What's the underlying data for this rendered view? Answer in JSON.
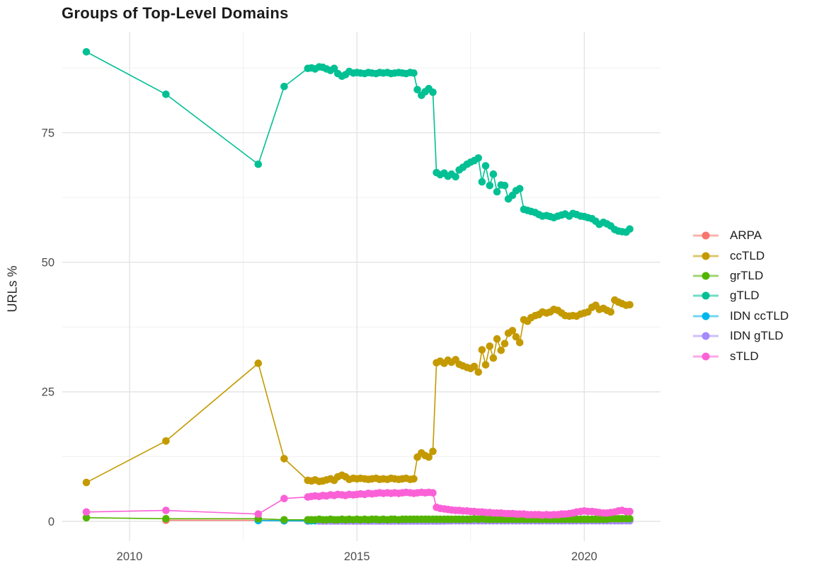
{
  "chart_data": {
    "type": "line",
    "title": "Groups of Top-Level Domains",
    "xlabel": "",
    "ylabel": "URLs %",
    "x_ticks": [
      2010,
      2015,
      2020
    ],
    "y_ticks": [
      0,
      25,
      50,
      75
    ],
    "x_minor_gridlines": [
      2012.5,
      2017.5
    ],
    "y_minor_gridlines": [
      12.5,
      37.5,
      62.5,
      87.5
    ],
    "xlim": [
      2008.5,
      2021.7
    ],
    "ylim": [
      -3.8,
      94.5
    ],
    "grid": "on",
    "legend_position": "right",
    "x": [
      2009.05,
      2010.8,
      2012.83,
      2013.4,
      2013.92,
      2014.0,
      2014.08,
      2014.17,
      2014.25,
      2014.33,
      2014.42,
      2014.5,
      2014.58,
      2014.67,
      2014.75,
      2014.83,
      2014.92,
      2015.0,
      2015.08,
      2015.17,
      2015.25,
      2015.33,
      2015.42,
      2015.5,
      2015.58,
      2015.67,
      2015.75,
      2015.83,
      2015.92,
      2016.0,
      2016.08,
      2016.17,
      2016.25,
      2016.33,
      2016.42,
      2016.5,
      2016.58,
      2016.67,
      2016.75,
      2016.83,
      2016.92,
      2017.0,
      2017.08,
      2017.17,
      2017.25,
      2017.33,
      2017.42,
      2017.5,
      2017.58,
      2017.67,
      2017.75,
      2017.83,
      2017.92,
      2018.0,
      2018.08,
      2018.17,
      2018.25,
      2018.33,
      2018.42,
      2018.5,
      2018.58,
      2018.67,
      2018.75,
      2018.83,
      2018.92,
      2019.0,
      2019.08,
      2019.17,
      2019.25,
      2019.33,
      2019.42,
      2019.5,
      2019.58,
      2019.67,
      2019.75,
      2019.83,
      2019.92,
      2020.0,
      2020.08,
      2020.17,
      2020.25,
      2020.33,
      2020.42,
      2020.5,
      2020.58,
      2020.67,
      2020.75,
      2020.83,
      2020.92,
      2021.0
    ],
    "series": [
      {
        "name": "ARPA",
        "color": "#F8766D",
        "x": [
          2010.8,
          2012.83,
          2013.4,
          2013.92
        ],
        "values": [
          0.2,
          0.2,
          0.1,
          0.05
        ]
      },
      {
        "name": "ccTLD",
        "color": "#C49A00",
        "values": [
          7.5,
          15.5,
          30.5,
          12.1,
          7.9,
          7.8,
          8.0,
          7.7,
          7.8,
          8.0,
          8.2,
          7.9,
          8.6,
          8.9,
          8.6,
          8.1,
          8.3,
          8.2,
          8.3,
          8.2,
          8.1,
          8.2,
          8.3,
          8.1,
          8.2,
          8.1,
          8.3,
          8.2,
          8.1,
          8.2,
          8.3,
          8.1,
          8.2,
          12.4,
          13.2,
          12.7,
          12.4,
          13.5,
          30.6,
          30.9,
          30.5,
          31.1,
          30.7,
          31.2,
          30.3,
          30.0,
          29.7,
          29.5,
          29.9,
          28.8,
          33.1,
          30.2,
          33.8,
          31.5,
          35.2,
          33.0,
          34.3,
          36.3,
          36.8,
          35.6,
          34.5,
          38.9,
          38.6,
          39.3,
          39.7,
          39.9,
          40.4,
          40.2,
          40.4,
          40.9,
          40.7,
          40.2,
          39.7,
          39.6,
          39.7,
          39.6,
          40.0,
          40.2,
          40.4,
          41.3,
          41.7,
          40.9,
          41.1,
          40.7,
          40.4,
          42.7,
          42.3,
          42.0,
          41.7,
          41.8
        ]
      },
      {
        "name": "grTLD",
        "color": "#53B400",
        "values": [
          0.7,
          0.5,
          0.5,
          0.3,
          0.3,
          0.3,
          0.3,
          0.4,
          0.3,
          0.3,
          0.4,
          0.3,
          0.3,
          0.4,
          0.3,
          0.4,
          0.3,
          0.4,
          0.3,
          0.4,
          0.3,
          0.4,
          0.4,
          0.3,
          0.4,
          0.3,
          0.4,
          0.4,
          0.3,
          0.4,
          0.4,
          0.4,
          0.4,
          0.4,
          0.4,
          0.4,
          0.4,
          0.4,
          0.4,
          0.4,
          0.4,
          0.4,
          0.4,
          0.4,
          0.4,
          0.4,
          0.4,
          0.4,
          0.5,
          0.4,
          0.5,
          0.4,
          0.4,
          0.4,
          0.4,
          0.4,
          0.4,
          0.4,
          0.4,
          0.4,
          0.4,
          0.4,
          0.4,
          0.4,
          0.4,
          0.4,
          0.4,
          0.4,
          0.4,
          0.4,
          0.4,
          0.4,
          0.4,
          0.4,
          0.4,
          0.4,
          0.4,
          0.4,
          0.4,
          0.4,
          0.4,
          0.4,
          0.4,
          0.4,
          0.5,
          0.5,
          0.5,
          0.5,
          0.5,
          0.5
        ]
      },
      {
        "name": "gTLD",
        "color": "#00C094",
        "values": [
          90.6,
          82.4,
          68.9,
          83.9,
          87.4,
          87.5,
          87.3,
          87.7,
          87.6,
          87.3,
          87.0,
          87.4,
          86.4,
          85.9,
          86.2,
          86.8,
          86.5,
          86.6,
          86.5,
          86.4,
          86.6,
          86.5,
          86.4,
          86.6,
          86.5,
          86.6,
          86.4,
          86.5,
          86.6,
          86.5,
          86.4,
          86.6,
          86.5,
          83.3,
          82.2,
          82.9,
          83.5,
          82.8,
          67.3,
          66.9,
          67.2,
          66.6,
          67.0,
          66.5,
          67.8,
          68.3,
          68.9,
          69.3,
          69.6,
          70.1,
          65.5,
          68.6,
          64.8,
          67.0,
          63.6,
          64.9,
          64.8,
          62.2,
          62.9,
          63.8,
          64.2,
          60.2,
          60.0,
          59.8,
          59.6,
          59.2,
          58.9,
          59.0,
          58.8,
          58.6,
          58.9,
          59.1,
          59.3,
          58.9,
          59.4,
          59.2,
          58.9,
          58.8,
          58.6,
          58.4,
          57.9,
          57.3,
          57.7,
          57.4,
          57.0,
          56.3,
          56.0,
          55.9,
          55.8,
          56.4
        ]
      },
      {
        "name": "IDN ccTLD",
        "color": "#00B6EB",
        "values": [
          null,
          null,
          0.15,
          0.1,
          0.1,
          0.1,
          0.1,
          0.1,
          0.1,
          0.1,
          0.1,
          0.1,
          0.1,
          0.1,
          0.1,
          0.1,
          0.1,
          0.1,
          0.1,
          0.1,
          0.1,
          0.1,
          0.1,
          0.1,
          0.1,
          0.1,
          0.1,
          0.1,
          0.1,
          0.1,
          0.1,
          0.1,
          0.1,
          0.1,
          0.1,
          0.1,
          0.1,
          0.1,
          0.15,
          0.15,
          0.15,
          0.15,
          0.15,
          0.15,
          0.15,
          0.15,
          0.15,
          0.15,
          0.15,
          0.15,
          0.15,
          0.15,
          0.15,
          0.15,
          0.15,
          0.15,
          0.15,
          0.15,
          0.15,
          0.15,
          0.15,
          0.15,
          0.15,
          0.15,
          0.15,
          0.15,
          0.15,
          0.15,
          0.15,
          0.15,
          0.15,
          0.15,
          0.15,
          0.15,
          0.15,
          0.15,
          0.15,
          0.2,
          0.2,
          0.2,
          0.2,
          0.2,
          0.2,
          0.2,
          0.2,
          0.2,
          0.2,
          0.2,
          0.2,
          0.2
        ]
      },
      {
        "name": "IDN gTLD",
        "color": "#A58AFF",
        "values": [
          null,
          null,
          null,
          null,
          null,
          null,
          null,
          0.05,
          0.05,
          0.05,
          0.05,
          0.05,
          0.05,
          0.05,
          0.05,
          0.05,
          0.05,
          0.05,
          0.05,
          0.05,
          0.05,
          0.05,
          0.05,
          0.05,
          0.05,
          0.05,
          0.05,
          0.05,
          0.05,
          0.05,
          0.05,
          0.05,
          0.05,
          0.05,
          0.05,
          0.05,
          0.05,
          0.05,
          0.05,
          0.05,
          0.05,
          0.1,
          0.1,
          0.1,
          0.1,
          0.1,
          0.1,
          0.1,
          0.1,
          0.1,
          0.1,
          0.1,
          0.1,
          0.1,
          0.1,
          0.1,
          0.1,
          0.1,
          0.1,
          0.1,
          0.1,
          0.1,
          0.1,
          0.1,
          0.1,
          0.1,
          0.1,
          0.1,
          0.1,
          0.1,
          0.1,
          0.1,
          0.1,
          0.1,
          0.1,
          0.1,
          0.1,
          0.1,
          0.1,
          0.1,
          0.1,
          0.1,
          0.1,
          0.1,
          0.1,
          0.1,
          0.1,
          0.1,
          0.1,
          0.1
        ]
      },
      {
        "name": "sTLD",
        "color": "#FB61D7",
        "values": [
          1.8,
          2.1,
          1.4,
          4.4,
          4.7,
          4.8,
          4.9,
          4.8,
          5.0,
          4.9,
          5.1,
          5.0,
          5.2,
          5.1,
          5.0,
          5.2,
          5.1,
          5.2,
          5.3,
          5.2,
          5.4,
          5.3,
          5.4,
          5.5,
          5.4,
          5.5,
          5.4,
          5.5,
          5.4,
          5.5,
          5.6,
          5.5,
          5.4,
          5.5,
          5.6,
          5.5,
          5.6,
          5.5,
          2.7,
          2.5,
          2.4,
          2.3,
          2.2,
          2.1,
          2.1,
          2.0,
          2.0,
          1.9,
          1.9,
          1.8,
          1.8,
          1.7,
          1.7,
          1.6,
          1.6,
          1.6,
          1.5,
          1.5,
          1.5,
          1.4,
          1.4,
          1.4,
          1.3,
          1.3,
          1.3,
          1.3,
          1.2,
          1.3,
          1.2,
          1.3,
          1.3,
          1.4,
          1.4,
          1.5,
          1.6,
          1.8,
          1.9,
          2.0,
          1.9,
          1.9,
          1.8,
          1.7,
          1.6,
          1.6,
          1.7,
          1.8,
          2.0,
          2.1,
          1.9,
          1.9
        ]
      }
    ],
    "draw_order": [
      "ARPA",
      "IDN ccTLD",
      "IDN gTLD",
      "grTLD",
      "gTLD",
      "ccTLD",
      "sTLD"
    ]
  }
}
